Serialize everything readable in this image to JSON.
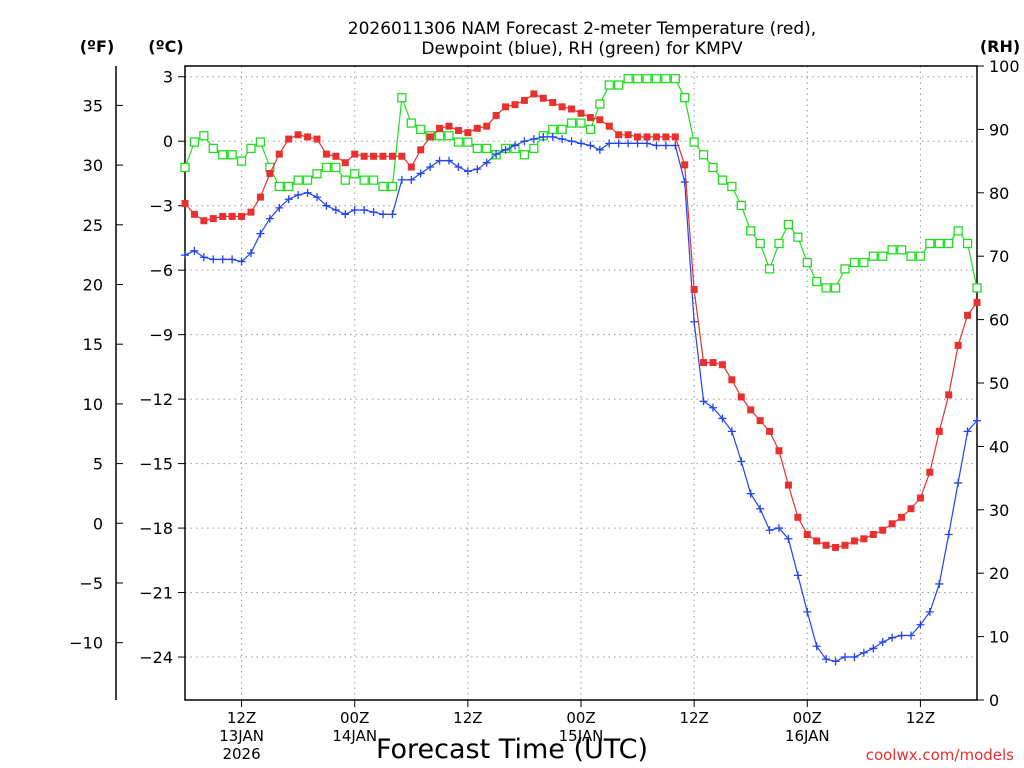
{
  "chart_data": {
    "type": "line",
    "title_line1": "2026011306 NAM Forecast 2-meter Temperature (red),",
    "title_line2": "Dewpoint (blue), RH (green) for KMPV",
    "units": {
      "fahrenheit": "(ºF)",
      "celsius": "(ºC)",
      "rh": "(RH)"
    },
    "xlabel": "Forecast Time (UTC)",
    "credit": "coolwx.com/models",
    "x_range_hours": [
      0,
      84
    ],
    "celsius_range": [
      -26,
      3.5
    ],
    "rh_range": [
      0,
      100
    ],
    "celsius_ticks": [
      "3",
      "0",
      "−3",
      "−6",
      "−9",
      "−12",
      "−15",
      "−18",
      "−21",
      "−24"
    ],
    "celsius_tick_values": [
      3,
      0,
      -3,
      -6,
      -9,
      -12,
      -15,
      -18,
      -21,
      -24
    ],
    "fahrenheit_ticks": [
      "35",
      "30",
      "25",
      "20",
      "15",
      "10",
      "5",
      "0",
      "−5",
      "−10"
    ],
    "fahrenheit_tick_values": [
      35,
      30,
      25,
      20,
      15,
      10,
      5,
      0,
      -5,
      -10
    ],
    "rh_ticks": [
      "100",
      "90",
      "80",
      "70",
      "60",
      "50",
      "40",
      "30",
      "20",
      "10",
      "0"
    ],
    "rh_tick_values": [
      100,
      90,
      80,
      70,
      60,
      50,
      40,
      30,
      20,
      10,
      0
    ],
    "x_ticks": [
      {
        "hour": 6,
        "label": "12Z",
        "date": "13JAN",
        "year": "2026"
      },
      {
        "hour": 18,
        "label": "00Z",
        "date": "14JAN",
        "year": ""
      },
      {
        "hour": 30,
        "label": "12Z",
        "date": "",
        "year": ""
      },
      {
        "hour": 42,
        "label": "00Z",
        "date": "15JAN",
        "year": ""
      },
      {
        "hour": 54,
        "label": "12Z",
        "date": "",
        "year": ""
      },
      {
        "hour": 66,
        "label": "00Z",
        "date": "16JAN",
        "year": ""
      },
      {
        "hour": 78,
        "label": "12Z",
        "date": "",
        "year": ""
      }
    ],
    "series": [
      {
        "name": "Temperature",
        "unit": "C",
        "color": "#e8302f",
        "marker": "square-filled",
        "points": [
          [
            0,
            -2.9
          ],
          [
            1,
            -3.4
          ],
          [
            2,
            -3.7
          ],
          [
            3,
            -3.6
          ],
          [
            4,
            -3.5
          ],
          [
            5,
            -3.5
          ],
          [
            6,
            -3.5
          ],
          [
            7,
            -3.3
          ],
          [
            8,
            -2.6
          ],
          [
            9,
            -1.5
          ],
          [
            10,
            -0.6
          ],
          [
            11,
            0.1
          ],
          [
            12,
            0.3
          ],
          [
            13,
            0.2
          ],
          [
            14,
            0.1
          ],
          [
            15,
            -0.6
          ],
          [
            16,
            -0.7
          ],
          [
            17,
            -1.0
          ],
          [
            18,
            -0.6
          ],
          [
            19,
            -0.7
          ],
          [
            20,
            -0.7
          ],
          [
            21,
            -0.7
          ],
          [
            22,
            -0.7
          ],
          [
            23,
            -0.7
          ],
          [
            24,
            -1.2
          ],
          [
            25,
            -0.4
          ],
          [
            26,
            0.2
          ],
          [
            27,
            0.6
          ],
          [
            28,
            0.7
          ],
          [
            29,
            0.5
          ],
          [
            30,
            0.4
          ],
          [
            31,
            0.6
          ],
          [
            32,
            0.7
          ],
          [
            33,
            1.2
          ],
          [
            34,
            1.6
          ],
          [
            35,
            1.7
          ],
          [
            36,
            1.9
          ],
          [
            37,
            2.2
          ],
          [
            38,
            2.0
          ],
          [
            39,
            1.8
          ],
          [
            40,
            1.6
          ],
          [
            41,
            1.5
          ],
          [
            42,
            1.3
          ],
          [
            43,
            1.1
          ],
          [
            44,
            1.0
          ],
          [
            45,
            0.7
          ],
          [
            46,
            0.3
          ],
          [
            47,
            0.3
          ],
          [
            48,
            0.2
          ],
          [
            49,
            0.2
          ],
          [
            50,
            0.2
          ],
          [
            51,
            0.2
          ],
          [
            52,
            0.2
          ],
          [
            53,
            -1.1
          ],
          [
            54,
            -6.9
          ],
          [
            55,
            -10.3
          ],
          [
            56,
            -10.3
          ],
          [
            57,
            -10.4
          ],
          [
            58,
            -11.1
          ],
          [
            59,
            -11.9
          ],
          [
            60,
            -12.5
          ],
          [
            61,
            -13.0
          ],
          [
            62,
            -13.5
          ],
          [
            63,
            -14.4
          ],
          [
            64,
            -16.0
          ],
          [
            65,
            -17.5
          ],
          [
            66,
            -18.3
          ],
          [
            67,
            -18.6
          ],
          [
            68,
            -18.8
          ],
          [
            69,
            -18.9
          ],
          [
            70,
            -18.8
          ],
          [
            71,
            -18.6
          ],
          [
            72,
            -18.5
          ],
          [
            73,
            -18.3
          ],
          [
            74,
            -18.1
          ],
          [
            75,
            -17.8
          ],
          [
            76,
            -17.5
          ],
          [
            77,
            -17.1
          ],
          [
            78,
            -16.6
          ],
          [
            79,
            -15.4
          ],
          [
            80,
            -13.5
          ],
          [
            81,
            -11.8
          ],
          [
            82,
            -9.5
          ],
          [
            83,
            -8.1
          ],
          [
            84,
            -7.5
          ]
        ]
      },
      {
        "name": "Dewpoint",
        "unit": "C",
        "color": "#2244ee",
        "marker": "plus",
        "points": [
          [
            0,
            -5.3
          ],
          [
            1,
            -5.1
          ],
          [
            2,
            -5.4
          ],
          [
            3,
            -5.5
          ],
          [
            4,
            -5.5
          ],
          [
            5,
            -5.5
          ],
          [
            6,
            -5.6
          ],
          [
            7,
            -5.2
          ],
          [
            8,
            -4.3
          ],
          [
            9,
            -3.6
          ],
          [
            10,
            -3.1
          ],
          [
            11,
            -2.7
          ],
          [
            12,
            -2.5
          ],
          [
            13,
            -2.4
          ],
          [
            14,
            -2.6
          ],
          [
            15,
            -3.0
          ],
          [
            16,
            -3.2
          ],
          [
            17,
            -3.4
          ],
          [
            18,
            -3.2
          ],
          [
            19,
            -3.2
          ],
          [
            20,
            -3.3
          ],
          [
            21,
            -3.4
          ],
          [
            22,
            -3.4
          ],
          [
            23,
            -1.8
          ],
          [
            24,
            -1.8
          ],
          [
            25,
            -1.5
          ],
          [
            26,
            -1.2
          ],
          [
            27,
            -0.9
          ],
          [
            28,
            -0.9
          ],
          [
            29,
            -1.2
          ],
          [
            30,
            -1.4
          ],
          [
            31,
            -1.3
          ],
          [
            32,
            -1.0
          ],
          [
            33,
            -0.6
          ],
          [
            34,
            -0.4
          ],
          [
            35,
            -0.2
          ],
          [
            36,
            0.0
          ],
          [
            37,
            0.1
          ],
          [
            38,
            0.2
          ],
          [
            39,
            0.2
          ],
          [
            40,
            0.1
          ],
          [
            41,
            0.0
          ],
          [
            42,
            -0.1
          ],
          [
            43,
            -0.2
          ],
          [
            44,
            -0.4
          ],
          [
            45,
            -0.1
          ],
          [
            46,
            -0.1
          ],
          [
            47,
            -0.1
          ],
          [
            48,
            -0.1
          ],
          [
            49,
            -0.1
          ],
          [
            50,
            -0.2
          ],
          [
            51,
            -0.2
          ],
          [
            52,
            -0.2
          ],
          [
            53,
            -1.9
          ],
          [
            54,
            -8.4
          ],
          [
            55,
            -12.1
          ],
          [
            56,
            -12.4
          ],
          [
            57,
            -12.9
          ],
          [
            58,
            -13.5
          ],
          [
            59,
            -14.9
          ],
          [
            60,
            -16.4
          ],
          [
            61,
            -17.1
          ],
          [
            62,
            -18.1
          ],
          [
            63,
            -18.0
          ],
          [
            64,
            -18.5
          ],
          [
            65,
            -20.2
          ],
          [
            66,
            -21.9
          ],
          [
            67,
            -23.5
          ],
          [
            68,
            -24.1
          ],
          [
            69,
            -24.2
          ],
          [
            70,
            -24.0
          ],
          [
            71,
            -24.0
          ],
          [
            72,
            -23.8
          ],
          [
            73,
            -23.6
          ],
          [
            74,
            -23.3
          ],
          [
            75,
            -23.1
          ],
          [
            76,
            -23.0
          ],
          [
            77,
            -23.0
          ],
          [
            78,
            -22.5
          ],
          [
            79,
            -21.9
          ],
          [
            80,
            -20.6
          ],
          [
            81,
            -18.3
          ],
          [
            82,
            -15.9
          ],
          [
            83,
            -13.5
          ],
          [
            84,
            -13.0
          ]
        ]
      },
      {
        "name": "RH",
        "unit": "%",
        "color": "#22dd22",
        "marker": "square-open",
        "points": [
          [
            0,
            84
          ],
          [
            1,
            88
          ],
          [
            2,
            89
          ],
          [
            3,
            87
          ],
          [
            4,
            86
          ],
          [
            5,
            86
          ],
          [
            6,
            85
          ],
          [
            7,
            87
          ],
          [
            8,
            88
          ],
          [
            9,
            84
          ],
          [
            10,
            81
          ],
          [
            11,
            81
          ],
          [
            12,
            82
          ],
          [
            13,
            82
          ],
          [
            14,
            83
          ],
          [
            15,
            84
          ],
          [
            16,
            84
          ],
          [
            17,
            82
          ],
          [
            18,
            83
          ],
          [
            19,
            82
          ],
          [
            20,
            82
          ],
          [
            21,
            81
          ],
          [
            22,
            81
          ],
          [
            23,
            95
          ],
          [
            24,
            91
          ],
          [
            25,
            90
          ],
          [
            26,
            89
          ],
          [
            27,
            89
          ],
          [
            28,
            89
          ],
          [
            29,
            88
          ],
          [
            30,
            88
          ],
          [
            31,
            87
          ],
          [
            32,
            87
          ],
          [
            33,
            86
          ],
          [
            34,
            87
          ],
          [
            35,
            87
          ],
          [
            36,
            86
          ],
          [
            37,
            87
          ],
          [
            38,
            89
          ],
          [
            39,
            90
          ],
          [
            40,
            90
          ],
          [
            41,
            91
          ],
          [
            42,
            91
          ],
          [
            43,
            90
          ],
          [
            44,
            94
          ],
          [
            45,
            97
          ],
          [
            46,
            97
          ],
          [
            47,
            98
          ],
          [
            48,
            98
          ],
          [
            49,
            98
          ],
          [
            50,
            98
          ],
          [
            51,
            98
          ],
          [
            52,
            98
          ],
          [
            53,
            95
          ],
          [
            54,
            88
          ],
          [
            55,
            86
          ],
          [
            56,
            84
          ],
          [
            57,
            82
          ],
          [
            58,
            81
          ],
          [
            59,
            78
          ],
          [
            60,
            74
          ],
          [
            61,
            72
          ],
          [
            62,
            68
          ],
          [
            63,
            72
          ],
          [
            64,
            75
          ],
          [
            65,
            73
          ],
          [
            66,
            69
          ],
          [
            67,
            66
          ],
          [
            68,
            65
          ],
          [
            69,
            65
          ],
          [
            70,
            68
          ],
          [
            71,
            69
          ],
          [
            72,
            69
          ],
          [
            73,
            70
          ],
          [
            74,
            70
          ],
          [
            75,
            71
          ],
          [
            76,
            71
          ],
          [
            77,
            70
          ],
          [
            78,
            70
          ],
          [
            79,
            72
          ],
          [
            80,
            72
          ],
          [
            81,
            72
          ],
          [
            82,
            74
          ],
          [
            83,
            72
          ],
          [
            84,
            65
          ]
        ]
      }
    ]
  }
}
